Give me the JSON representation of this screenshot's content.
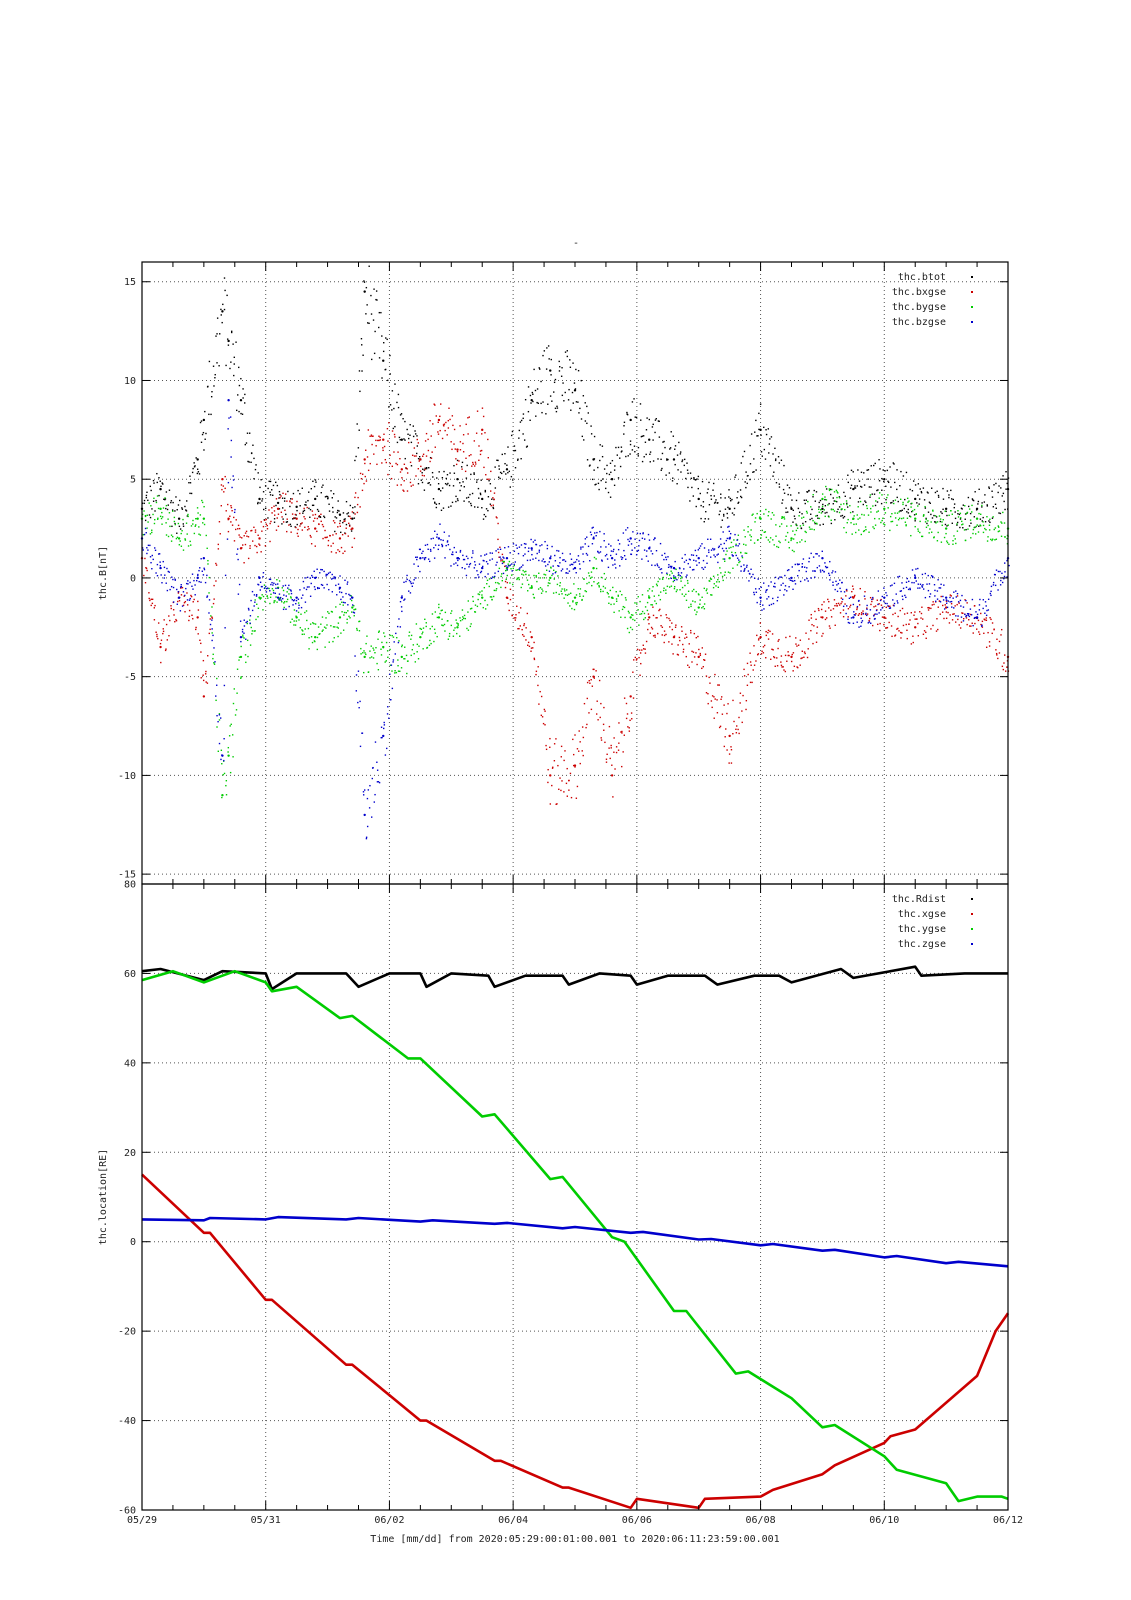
{
  "page": {
    "title_mark": "-"
  },
  "footer": {
    "time_label": "Time [mm/dd]  from 2020:05:29:00:01:00.001  to  2020:06:11:23:59:00.001"
  },
  "colors": {
    "btot": "#000000",
    "bx": "#cc0000",
    "by": "#00cc00",
    "bz": "#0000cc",
    "grid": "#555555",
    "frame": "#000000"
  },
  "chart_data": [
    {
      "type": "scatter",
      "ylabel": "thc.B[nT]",
      "ylim": [
        -15.5,
        16
      ],
      "yticks": [
        -15,
        -10,
        -5,
        0,
        5,
        10,
        15
      ],
      "xlim": [
        0,
        14
      ],
      "xtick_days": [
        0,
        2,
        4,
        6,
        8,
        10,
        12,
        14
      ],
      "xticks": [
        "05/29",
        "05/31",
        "06/02",
        "06/04",
        "06/06",
        "06/08",
        "06/10",
        "06/12"
      ],
      "grid": true,
      "legend_position": "top-right",
      "series": [
        {
          "name": "thc.btot",
          "color": "#000000",
          "x": [
            0,
            0.3,
            0.6,
            0.9,
            1.0,
            1.3,
            1.4,
            1.6,
            1.9,
            2.2,
            2.5,
            2.8,
            3.2,
            3.4,
            3.6,
            3.9,
            4.2,
            4.5,
            4.8,
            5.1,
            5.5,
            5.9,
            6.3,
            6.6,
            7.0,
            7.3,
            7.6,
            7.9,
            8.2,
            8.6,
            9.0,
            9.5,
            10.0,
            10.5,
            11.0,
            11.5,
            12.0,
            12.5,
            13.0,
            13.5,
            14.0
          ],
          "y": [
            3.5,
            4.5,
            3.0,
            6.0,
            8.0,
            13.5,
            12.0,
            9.0,
            4.0,
            3.8,
            3.6,
            4.0,
            3.2,
            3.0,
            14.5,
            11.0,
            7.0,
            6.0,
            4.5,
            5.0,
            4.0,
            5.5,
            9.0,
            10.5,
            9.5,
            6.0,
            5.0,
            8.0,
            7.0,
            6.0,
            4.0,
            3.5,
            7.5,
            3.5,
            3.5,
            4.5,
            5.0,
            4.0,
            3.5,
            3.5,
            4.5
          ]
        },
        {
          "name": "thc.bxgse",
          "color": "#cc0000",
          "x": [
            0,
            0.3,
            0.6,
            0.9,
            1.0,
            1.3,
            1.4,
            1.6,
            1.9,
            2.2,
            2.5,
            2.8,
            3.2,
            3.4,
            3.6,
            3.9,
            4.2,
            4.5,
            4.8,
            5.1,
            5.5,
            5.9,
            6.3,
            6.6,
            7.0,
            7.3,
            7.6,
            7.9,
            8.2,
            8.6,
            9.0,
            9.5,
            10.0,
            10.5,
            11.0,
            11.5,
            12.0,
            12.5,
            13.0,
            13.5,
            14.0
          ],
          "y": [
            1.0,
            -3.5,
            -1.0,
            -2.0,
            -6.0,
            5.0,
            3.0,
            1.5,
            2.0,
            3.5,
            3.0,
            2.5,
            2.0,
            2.5,
            6.0,
            7.0,
            5.5,
            6.0,
            8.0,
            6.5,
            7.5,
            -1.0,
            -3.0,
            -10.0,
            -9.5,
            -5.0,
            -10.0,
            -6.0,
            -2.0,
            -3.0,
            -4.0,
            -8.0,
            -3.0,
            -4.0,
            -2.0,
            -1.0,
            -2.0,
            -2.5,
            -1.5,
            -2.0,
            -4.0
          ]
        },
        {
          "name": "thc.bygse",
          "color": "#00cc00",
          "x": [
            0,
            0.3,
            0.6,
            0.9,
            1.0,
            1.3,
            1.4,
            1.6,
            1.9,
            2.2,
            2.5,
            2.8,
            3.2,
            3.4,
            3.6,
            3.9,
            4.2,
            4.5,
            4.8,
            5.1,
            5.5,
            5.9,
            6.3,
            6.6,
            7.0,
            7.3,
            7.6,
            7.9,
            8.2,
            8.6,
            9.0,
            9.5,
            10.0,
            10.5,
            11.0,
            11.5,
            12.0,
            12.5,
            13.0,
            13.5,
            14.0
          ],
          "y": [
            3.0,
            3.5,
            2.0,
            3.0,
            3.0,
            -11.0,
            -9.0,
            -4.0,
            -1.0,
            -0.5,
            -2.0,
            -3.0,
            -2.0,
            -1.5,
            -4.0,
            -3.5,
            -4.0,
            -3.0,
            -2.0,
            -2.5,
            -1.0,
            0.5,
            -0.5,
            0.0,
            -1.0,
            0.5,
            -1.0,
            -2.0,
            -1.0,
            0.0,
            -1.5,
            1.0,
            3.0,
            2.0,
            4.0,
            3.0,
            3.5,
            3.0,
            2.5,
            3.0,
            2.5
          ]
        },
        {
          "name": "thc.bzgse",
          "color": "#0000cc",
          "x": [
            0,
            0.3,
            0.6,
            0.9,
            1.0,
            1.3,
            1.4,
            1.6,
            1.9,
            2.2,
            2.5,
            2.8,
            3.2,
            3.4,
            3.6,
            3.9,
            4.2,
            4.5,
            4.8,
            5.1,
            5.5,
            5.9,
            6.3,
            6.6,
            7.0,
            7.3,
            7.6,
            7.9,
            8.2,
            8.6,
            9.0,
            9.5,
            10.0,
            10.5,
            11.0,
            11.5,
            12.0,
            12.5,
            13.0,
            13.5,
            14.0
          ],
          "y": [
            2.0,
            0.5,
            -1.0,
            0.0,
            1.0,
            -9.0,
            9.0,
            -3.0,
            0.0,
            -1.0,
            -1.0,
            0.0,
            -0.5,
            -1.0,
            -12.0,
            -8.0,
            -1.0,
            1.0,
            2.0,
            1.0,
            0.5,
            1.0,
            1.5,
            1.0,
            0.5,
            2.0,
            1.0,
            2.0,
            1.5,
            0.5,
            1.0,
            2.0,
            -1.0,
            0.0,
            1.0,
            -2.0,
            -1.0,
            0.0,
            -1.0,
            -2.0,
            1.0
          ]
        }
      ]
    },
    {
      "type": "line",
      "ylabel": "thc.location[RE]",
      "ylim": [
        -60,
        80
      ],
      "yticks": [
        -60,
        -40,
        -20,
        0,
        20,
        40,
        60,
        80
      ],
      "xlim": [
        0,
        14
      ],
      "xtick_days": [
        0,
        2,
        4,
        6,
        8,
        10,
        12,
        14
      ],
      "xticks": [
        "05/29",
        "05/31",
        "06/02",
        "06/04",
        "06/06",
        "06/08",
        "06/10",
        "06/12"
      ],
      "grid": true,
      "legend_position": "top-right",
      "series": [
        {
          "name": "thc.Rdist",
          "color": "#000000",
          "x": [
            0,
            0.3,
            1.0,
            1.3,
            2.0,
            2.1,
            2.5,
            3.3,
            3.5,
            4.0,
            4.5,
            4.6,
            5.0,
            5.6,
            5.7,
            6.2,
            6.8,
            6.9,
            7.4,
            7.9,
            8.0,
            8.5,
            9.1,
            9.3,
            9.9,
            10.3,
            10.5,
            11.3,
            11.5,
            12.5,
            12.6,
            13.3,
            14.0
          ],
          "y": [
            60.5,
            61.0,
            58.5,
            60.5,
            60.0,
            56.5,
            60.0,
            60.0,
            57.0,
            60.0,
            60.0,
            57.0,
            60.0,
            59.5,
            57.0,
            59.5,
            59.5,
            57.5,
            60.0,
            59.5,
            57.5,
            59.5,
            59.5,
            57.5,
            59.5,
            59.5,
            58.0,
            61.0,
            59.0,
            61.5,
            59.5,
            60.0,
            60.0
          ]
        },
        {
          "name": "thc.xgse",
          "color": "#cc0000",
          "x": [
            0,
            1.0,
            1.1,
            2.0,
            2.1,
            3.3,
            3.4,
            4.5,
            4.6,
            5.7,
            5.8,
            6.8,
            6.9,
            7.9,
            8.0,
            9.0,
            9.1,
            10.0,
            10.2,
            11.0,
            11.2,
            12.0,
            12.1,
            12.5,
            13.5,
            13.8,
            14.0
          ],
          "y": [
            15.0,
            2.0,
            2.0,
            -13.0,
            -13.0,
            -27.5,
            -27.5,
            -40.0,
            -40.0,
            -49.0,
            -49.0,
            -55.0,
            -55.0,
            -59.5,
            -57.5,
            -59.5,
            -57.5,
            -57.0,
            -55.5,
            -52.0,
            -50.0,
            -45.0,
            -43.5,
            -42.0,
            -30.0,
            -20.0,
            -16.0
          ]
        },
        {
          "name": "thc.ygse",
          "color": "#00cc00",
          "x": [
            0,
            0.5,
            1.0,
            1.5,
            2.0,
            2.1,
            2.5,
            3.2,
            3.4,
            4.3,
            4.5,
            5.5,
            5.7,
            6.6,
            6.8,
            7.6,
            7.8,
            8.6,
            8.8,
            9.6,
            9.8,
            10.5,
            11.0,
            11.2,
            12.0,
            12.2,
            13.0,
            13.2,
            13.5,
            13.9,
            14.0
          ],
          "y": [
            58.5,
            60.5,
            58.0,
            60.5,
            58.0,
            56.0,
            57.0,
            50.0,
            50.5,
            41.0,
            41.0,
            28.0,
            28.5,
            14.0,
            14.5,
            1.0,
            0.0,
            -15.5,
            -15.5,
            -29.5,
            -29.0,
            -35.0,
            -41.5,
            -41.0,
            -48.0,
            -51.0,
            -54.0,
            -58.0,
            -57.0,
            -57.0,
            -57.5
          ]
        },
        {
          "name": "thc.zgse",
          "color": "#0000cc",
          "x": [
            0,
            1.0,
            1.1,
            2.0,
            2.2,
            3.3,
            3.5,
            4.5,
            4.7,
            5.7,
            5.9,
            6.8,
            7.0,
            7.9,
            8.1,
            9.0,
            9.2,
            10.0,
            10.2,
            11.0,
            11.2,
            12.0,
            12.2,
            13.0,
            13.2,
            14.0
          ],
          "y": [
            5.0,
            4.8,
            5.3,
            5.0,
            5.5,
            5.0,
            5.3,
            4.5,
            4.8,
            4.0,
            4.2,
            3.0,
            3.3,
            2.0,
            2.2,
            0.5,
            0.6,
            -0.8,
            -0.5,
            -2.0,
            -1.8,
            -3.5,
            -3.2,
            -4.8,
            -4.5,
            -5.5
          ]
        }
      ]
    }
  ]
}
